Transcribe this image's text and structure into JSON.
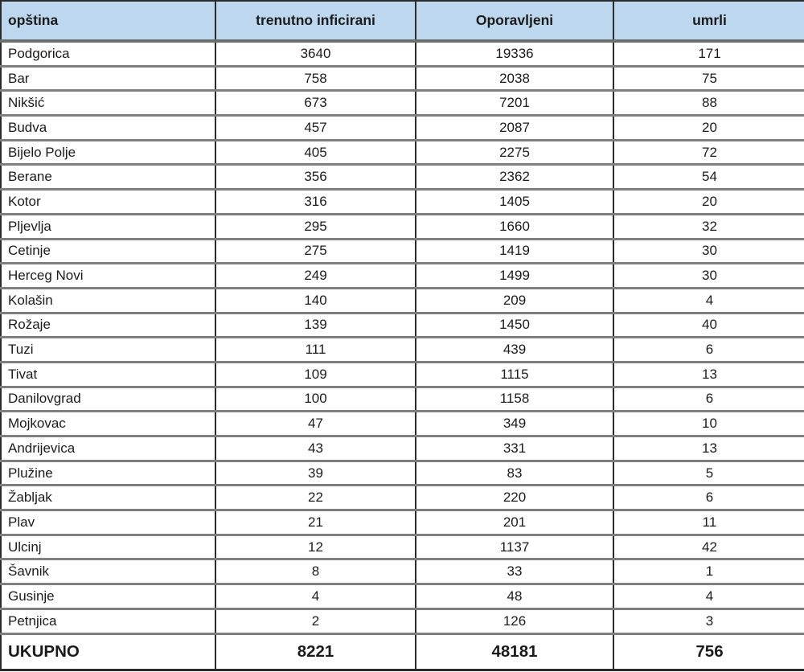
{
  "colors": {
    "header_background": "#bdd7ee",
    "vertical_border": "#2b2b2b",
    "row_separator": "#7f7f7f",
    "text": "#1b1b1b"
  },
  "chart_data": {
    "type": "table",
    "title": "",
    "columns": [
      "opština",
      "trenutno inficirani",
      "Oporavljeni",
      "umrli"
    ],
    "rows": [
      [
        "Podgorica",
        3640,
        19336,
        171
      ],
      [
        "Bar",
        758,
        2038,
        75
      ],
      [
        "Nikšić",
        673,
        7201,
        88
      ],
      [
        "Budva",
        457,
        2087,
        20
      ],
      [
        "Bijelo Polje",
        405,
        2275,
        72
      ],
      [
        "Berane",
        356,
        2362,
        54
      ],
      [
        "Kotor",
        316,
        1405,
        20
      ],
      [
        "Pljevlja",
        295,
        1660,
        32
      ],
      [
        "Cetinje",
        275,
        1419,
        30
      ],
      [
        "Herceg Novi",
        249,
        1499,
        30
      ],
      [
        "Kolašin",
        140,
        209,
        4
      ],
      [
        "Rožaje",
        139,
        1450,
        40
      ],
      [
        "Tuzi",
        111,
        439,
        6
      ],
      [
        "Tivat",
        109,
        1115,
        13
      ],
      [
        "Danilovgrad",
        100,
        1158,
        6
      ],
      [
        "Mojkovac",
        47,
        349,
        10
      ],
      [
        "Andrijevica",
        43,
        331,
        13
      ],
      [
        "Plužine",
        39,
        83,
        5
      ],
      [
        "Žabljak",
        22,
        220,
        6
      ],
      [
        "Plav",
        21,
        201,
        11
      ],
      [
        "Ulcinj",
        12,
        1137,
        42
      ],
      [
        "Šavnik",
        8,
        33,
        1
      ],
      [
        "Gusinje",
        4,
        48,
        4
      ],
      [
        "Petnjica",
        2,
        126,
        3
      ]
    ],
    "total_row": [
      "UKUPNO",
      8221,
      48181,
      756
    ]
  }
}
